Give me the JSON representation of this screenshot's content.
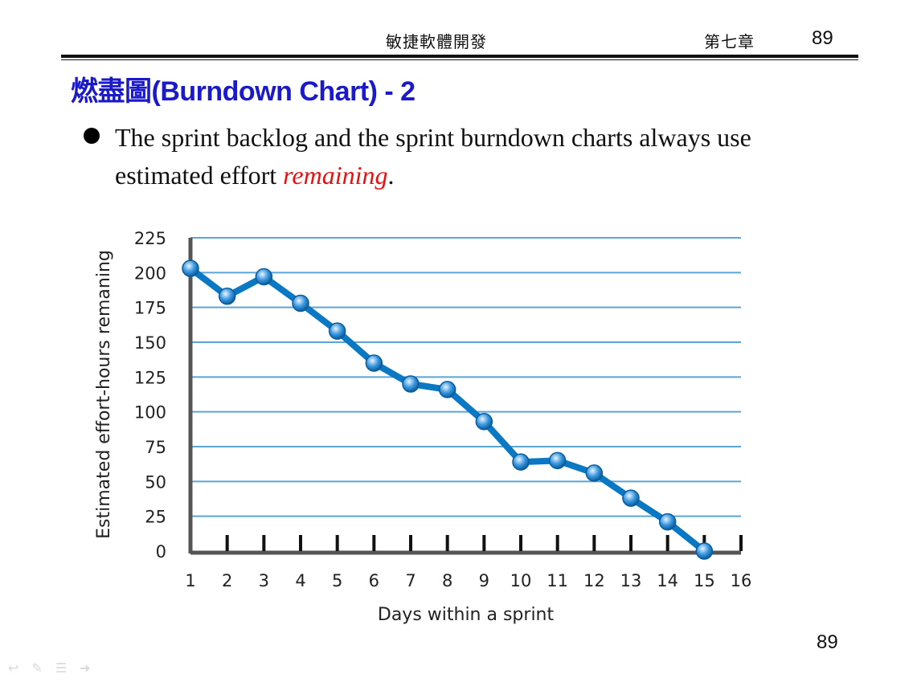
{
  "header": {
    "course": "敏捷軟體開發",
    "chapter": "第七章",
    "page": "89"
  },
  "slide": {
    "title": "燃盡圖(Burndown Chart) - 2",
    "bullet": {
      "text_before": "The sprint backlog and the sprint burndown charts always use estimated effort ",
      "emphasis": "remaining",
      "text_after": "."
    }
  },
  "footer": {
    "page": "89"
  },
  "colors": {
    "title": "#1a1acc",
    "emphasis": "#e81010",
    "line": "#0a78c2",
    "grid": "#5aa4d6",
    "axis": "#555555"
  },
  "nav_icons": [
    "back-arrow-icon",
    "pen-icon",
    "menu-icon",
    "forward-arrow-icon"
  ],
  "chart_data": {
    "type": "line",
    "xlabel": "Days within a sprint",
    "ylabel": "Estimated effort-hours remaning",
    "ylim": [
      0,
      225
    ],
    "xlim": [
      1,
      16
    ],
    "yticks": [
      0,
      25,
      50,
      75,
      100,
      125,
      150,
      175,
      200,
      225
    ],
    "xticks": [
      1,
      2,
      3,
      4,
      5,
      6,
      7,
      8,
      9,
      10,
      11,
      12,
      13,
      14,
      15,
      16
    ],
    "grid": true,
    "series": [
      {
        "x": [
          1,
          2,
          3,
          4,
          5,
          6,
          7,
          8,
          9,
          10,
          11,
          12,
          13,
          14,
          15
        ],
        "values": [
          203,
          183,
          197,
          178,
          158,
          135,
          120,
          116,
          93,
          64,
          65,
          56,
          38,
          21,
          0
        ]
      }
    ]
  }
}
